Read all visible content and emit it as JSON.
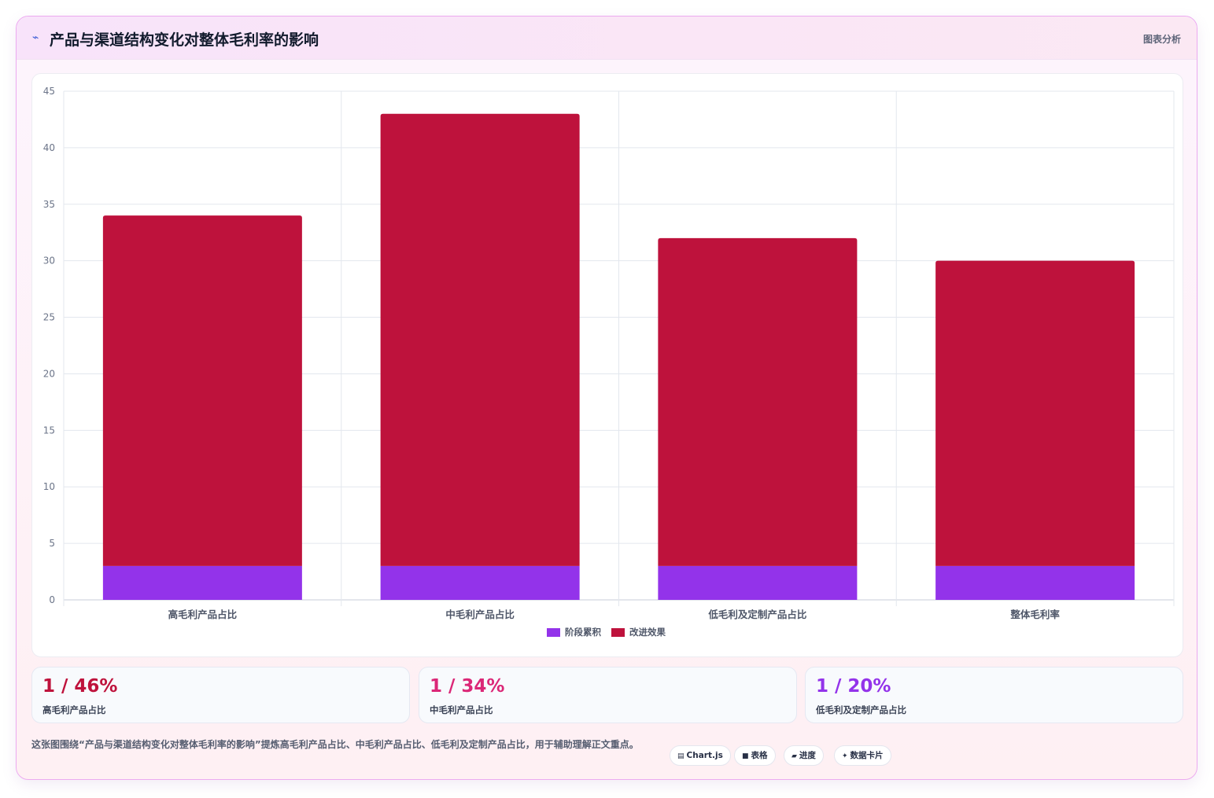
{
  "header": {
    "icon": "trend-icon",
    "title": "产品与渠道结构变化对整体毛利率的影响",
    "tag": "图表分析"
  },
  "chart_data": {
    "type": "bar",
    "stacked": true,
    "categories": [
      "高毛利产品占比",
      "中毛利产品占比",
      "低毛利及定制产品占比",
      "整体毛利率"
    ],
    "series": [
      {
        "name": "阶段累积",
        "color": "#9333ea",
        "values": [
          3,
          3,
          3,
          3
        ]
      },
      {
        "name": "改进效果",
        "color": "#be123c",
        "values": [
          31,
          40,
          29,
          27
        ]
      }
    ],
    "ylim": [
      0,
      45
    ],
    "yticks": [
      "0",
      "5",
      "10",
      "15",
      "20",
      "25",
      "30",
      "35",
      "40",
      "45"
    ],
    "grid": true,
    "legend": "bottom"
  },
  "stats": [
    {
      "value": "1 / 46%",
      "label": "高毛利产品占比",
      "color": "#be123c"
    },
    {
      "value": "1 / 34%",
      "label": "中毛利产品占比",
      "color": "#db2777"
    },
    {
      "value": "1 / 20%",
      "label": "低毛利及定制产品占比",
      "color": "#9333ea"
    }
  ],
  "footer": {
    "text": "这张图围绕“产品与渠道结构变化对整体毛利率的影响”提炼高毛利产品占比、中毛利产品占比、低毛利及定制产品占比，用于辅助理解正文重点。",
    "tags": [
      {
        "icon": "chart-icon",
        "glyph": "▤",
        "label": "Chart.js"
      },
      {
        "icon": "table-icon",
        "glyph": "■",
        "label": "表格"
      },
      {
        "icon": "progress-icon",
        "glyph": "▰",
        "label": "进度"
      },
      {
        "icon": "sparkle-icon",
        "glyph": "✦",
        "label": "数据卡片"
      }
    ]
  }
}
